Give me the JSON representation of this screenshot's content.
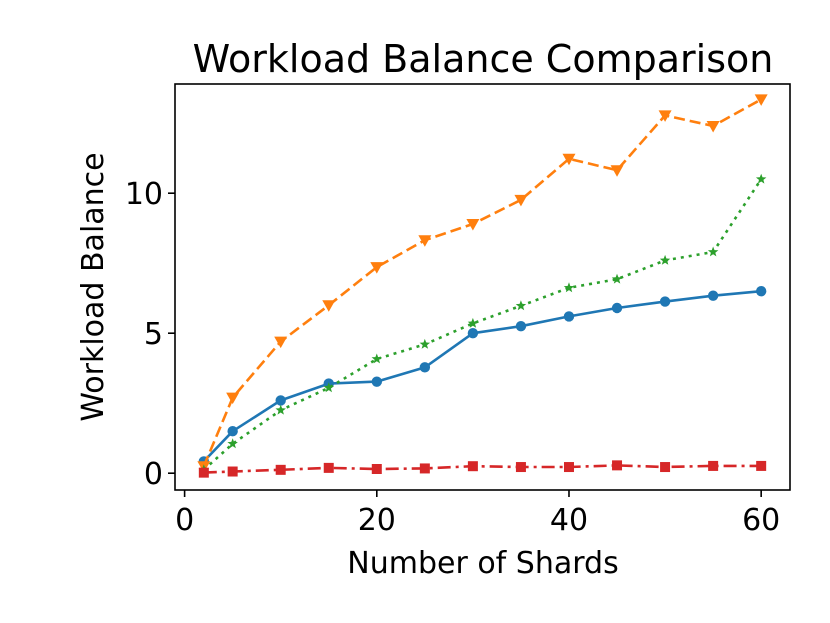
{
  "chart_data": {
    "type": "line",
    "title": "Workload Balance Comparison",
    "xlabel": "Number of Shards",
    "ylabel": "Workload Balance",
    "xlim": [
      -1,
      63
    ],
    "ylim": [
      -0.6,
      13.9
    ],
    "xticks": [
      0,
      20,
      40,
      60
    ],
    "yticks": [
      0,
      5,
      10
    ],
    "grid": false,
    "x": [
      2,
      5,
      10,
      15,
      20,
      25,
      30,
      35,
      40,
      45,
      50,
      55,
      60
    ],
    "series": [
      {
        "color": "#1f77b4",
        "linestyle": "solid",
        "marker": "circle",
        "values": [
          0.42,
          1.5,
          2.6,
          3.2,
          3.27,
          3.78,
          5.0,
          5.25,
          5.6,
          5.9,
          6.13,
          6.34,
          6.5
        ]
      },
      {
        "color": "#ff7f0e",
        "linestyle": "dashed",
        "marker": "triangle-down",
        "values": [
          0.25,
          2.7,
          4.7,
          6.0,
          7.36,
          8.32,
          8.9,
          9.76,
          11.23,
          10.82,
          12.78,
          12.4,
          13.35
        ]
      },
      {
        "color": "#2ca02c",
        "linestyle": "dotted",
        "marker": "star",
        "values": [
          0.12,
          1.05,
          2.25,
          3.05,
          4.08,
          4.6,
          5.35,
          5.98,
          6.62,
          6.93,
          7.6,
          7.9,
          10.5
        ]
      },
      {
        "color": "#d62728",
        "linestyle": "dashdot",
        "marker": "square",
        "values": [
          0.02,
          0.06,
          0.12,
          0.19,
          0.15,
          0.17,
          0.25,
          0.22,
          0.22,
          0.28,
          0.22,
          0.26,
          0.26
        ]
      }
    ]
  }
}
